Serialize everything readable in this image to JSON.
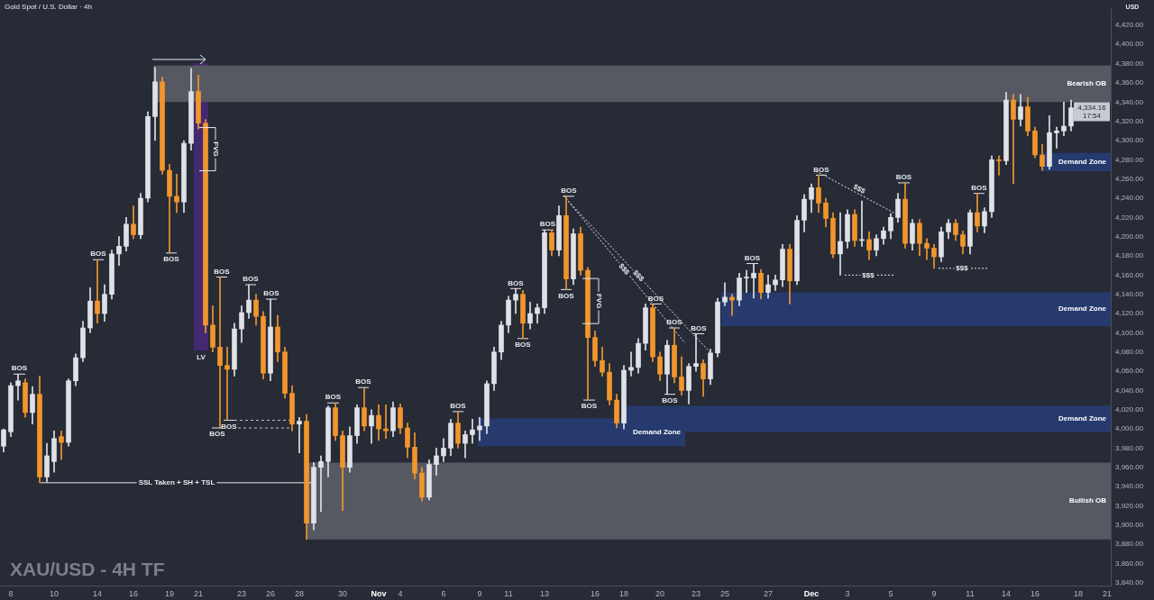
{
  "chart_data": {
    "type": "candlestick",
    "title": "XAU/USD - 4H TF",
    "subtitle": "Gold Spot / U.S. Dollar · 4h",
    "ylabel": "USD",
    "categories": [
      null,
      "8",
      null,
      null,
      null,
      null,
      null,
      "10",
      null,
      null,
      null,
      null,
      null,
      "14",
      null,
      null,
      null,
      null,
      "16",
      null,
      null,
      null,
      null,
      "19",
      null,
      null,
      null,
      "21",
      null,
      null,
      null,
      null,
      null,
      "23",
      null,
      null,
      null,
      "26",
      null,
      null,
      null,
      "28",
      null,
      null,
      null,
      null,
      null,
      "30",
      null,
      null,
      null,
      null,
      "Nov",
      null,
      null,
      "4",
      null,
      null,
      null,
      null,
      null,
      "6",
      null,
      null,
      null,
      null,
      "9",
      null,
      null,
      null,
      "11",
      null,
      null,
      null,
      null,
      "13",
      null,
      null,
      null,
      null,
      null,
      null,
      "16",
      null,
      null,
      null,
      "18",
      null,
      null,
      null,
      null,
      "20",
      null,
      null,
      null,
      null,
      "23",
      null,
      null,
      null,
      "25",
      null,
      null,
      null,
      null,
      null,
      "27",
      null,
      null,
      null,
      null,
      null,
      "Dec",
      null,
      null,
      null,
      null,
      "3",
      null,
      null,
      null,
      null,
      null,
      "5",
      null,
      null,
      null,
      null,
      null,
      "9",
      null,
      null,
      null,
      null,
      "11",
      null,
      null,
      null,
      null,
      "14",
      null,
      null,
      null,
      "16",
      null,
      null,
      null,
      null,
      null,
      "18",
      null,
      null,
      null,
      "21"
    ],
    "ohlc": [
      [
        3982,
        4000,
        3976,
        3999
      ],
      [
        3997,
        4048,
        3992,
        4045
      ],
      [
        4045,
        4057,
        4030,
        4050
      ],
      [
        4048,
        4052,
        4012,
        4017
      ],
      [
        4017,
        4044,
        4005,
        4036
      ],
      [
        4036,
        4055,
        3944,
        3950
      ],
      [
        3950,
        3985,
        3945,
        3972
      ],
      [
        3966,
        3998,
        3955,
        3990
      ],
      [
        3992,
        3998,
        3968,
        3986
      ],
      [
        3986,
        4052,
        3982,
        4050
      ],
      [
        4050,
        4078,
        4045,
        4074
      ],
      [
        4074,
        4112,
        4070,
        4105
      ],
      [
        4105,
        4147,
        4100,
        4133
      ],
      [
        4133,
        4176,
        4110,
        4120
      ],
      [
        4120,
        4150,
        4112,
        4140
      ],
      [
        4140,
        4186,
        4135,
        4182
      ],
      [
        4182,
        4200,
        4170,
        4190
      ],
      [
        4190,
        4220,
        4185,
        4213
      ],
      [
        4213,
        4232,
        4198,
        4202
      ],
      [
        4202,
        4245,
        4198,
        4240
      ],
      [
        4240,
        4330,
        4236,
        4325
      ],
      [
        4325,
        4376,
        4300,
        4361
      ],
      [
        4361,
        4366,
        4265,
        4269
      ],
      [
        4269,
        4275,
        4183,
        4242
      ],
      [
        4242,
        4265,
        4225,
        4236
      ],
      [
        4236,
        4300,
        4225,
        4297
      ],
      [
        4297,
        4375,
        4290,
        4351
      ],
      [
        4351,
        4368,
        4312,
        4318
      ],
      [
        4318,
        4322,
        4100,
        4108
      ],
      [
        4108,
        4128,
        4080,
        4085
      ],
      [
        4085,
        4158,
        4001,
        4066
      ],
      [
        4066,
        4085,
        4009,
        4062
      ],
      [
        4062,
        4110,
        4055,
        4104
      ],
      [
        4104,
        4128,
        4090,
        4121
      ],
      [
        4121,
        4150,
        4115,
        4134
      ],
      [
        4134,
        4140,
        4108,
        4117
      ],
      [
        4117,
        4122,
        4052,
        4058
      ],
      [
        4058,
        4135,
        4050,
        4106
      ],
      [
        4106,
        4118,
        4070,
        4080
      ],
      [
        4080,
        4085,
        4032,
        4037
      ],
      [
        4037,
        4045,
        3998,
        4005
      ],
      [
        4005,
        4012,
        3975,
        4008
      ],
      [
        4008,
        4015,
        3885,
        3902
      ],
      [
        3902,
        3965,
        3895,
        3960
      ],
      [
        3960,
        3972,
        3914,
        3966
      ],
      [
        3966,
        4024,
        3950,
        4022
      ],
      [
        4022,
        4027,
        3988,
        3993
      ],
      [
        3993,
        3998,
        3915,
        3960
      ],
      [
        3960,
        4002,
        3955,
        3993
      ],
      [
        3993,
        4025,
        3985,
        4022
      ],
      [
        4022,
        4043,
        3998,
        4003
      ],
      [
        4003,
        4020,
        3985,
        4014
      ],
      [
        4014,
        4025,
        3988,
        4000
      ],
      [
        4000,
        4025,
        3990,
        3998
      ],
      [
        3998,
        4028,
        3992,
        4022
      ],
      [
        4022,
        4026,
        3995,
        4001
      ],
      [
        4001,
        4006,
        3970,
        3981
      ],
      [
        3981,
        3996,
        3948,
        3954
      ],
      [
        3954,
        3960,
        3925,
        3929
      ],
      [
        3929,
        3968,
        3926,
        3963
      ],
      [
        3963,
        3980,
        3952,
        3972
      ],
      [
        3972,
        3990,
        3966,
        3980
      ],
      [
        3980,
        4010,
        3972,
        4006
      ],
      [
        4006,
        4018,
        3980,
        3985
      ],
      [
        3985,
        3998,
        3970,
        3994
      ],
      [
        3994,
        4010,
        3985,
        3999
      ],
      [
        3999,
        4012,
        3988,
        4003
      ],
      [
        4003,
        4050,
        3995,
        4047
      ],
      [
        4047,
        4085,
        4040,
        4080
      ],
      [
        4080,
        4112,
        4072,
        4108
      ],
      [
        4108,
        4138,
        4100,
        4134
      ],
      [
        4134,
        4146,
        4120,
        4140
      ],
      [
        4140,
        4144,
        4094,
        4110
      ],
      [
        4110,
        4132,
        4104,
        4120
      ],
      [
        4120,
        4130,
        4110,
        4126
      ],
      [
        4126,
        4207,
        4120,
        4204
      ],
      [
        4204,
        4207,
        4180,
        4186
      ],
      [
        4186,
        4232,
        4180,
        4222
      ],
      [
        4222,
        4242,
        4145,
        4156
      ],
      [
        4156,
        4208,
        4150,
        4203
      ],
      [
        4203,
        4210,
        4160,
        4165
      ],
      [
        4165,
        4168,
        4030,
        4095
      ],
      [
        4095,
        4102,
        4065,
        4071
      ],
      [
        4071,
        4085,
        4055,
        4059
      ],
      [
        4059,
        4068,
        4025,
        4030
      ],
      [
        4030,
        4036,
        4001,
        4006
      ],
      [
        4006,
        4066,
        4000,
        4061
      ],
      [
        4061,
        4080,
        4055,
        4064
      ],
      [
        4064,
        4094,
        4058,
        4089
      ],
      [
        4089,
        4130,
        4082,
        4126
      ],
      [
        4126,
        4130,
        4070,
        4075
      ],
      [
        4075,
        4080,
        4050,
        4057
      ],
      [
        4057,
        4092,
        4036,
        4087
      ],
      [
        4087,
        4105,
        4048,
        4054
      ],
      [
        4054,
        4075,
        4035,
        4040
      ],
      [
        4040,
        4068,
        4026,
        4065
      ],
      [
        4065,
        4099,
        4060,
        4068
      ],
      [
        4068,
        4072,
        4034,
        4052
      ],
      [
        4052,
        4083,
        4046,
        4079
      ],
      [
        4079,
        4136,
        4075,
        4132
      ],
      [
        4132,
        4152,
        4128,
        4137
      ],
      [
        4137,
        4140,
        4118,
        4134
      ],
      [
        4134,
        4162,
        4128,
        4157
      ],
      [
        4157,
        4165,
        4142,
        4157
      ],
      [
        4157,
        4172,
        4136,
        4162
      ],
      [
        4162,
        4166,
        4135,
        4142
      ],
      [
        4142,
        4160,
        4136,
        4150
      ],
      [
        4150,
        4160,
        4144,
        4155
      ],
      [
        4155,
        4192,
        4148,
        4187
      ],
      [
        4187,
        4192,
        4130,
        4154
      ],
      [
        4154,
        4222,
        4150,
        4217
      ],
      [
        4217,
        4244,
        4205,
        4239
      ],
      [
        4239,
        4255,
        4225,
        4251
      ],
      [
        4251,
        4264,
        4225,
        4235
      ],
      [
        4235,
        4240,
        4210,
        4219
      ],
      [
        4219,
        4225,
        4178,
        4182
      ],
      [
        4182,
        4225,
        4160,
        4195
      ],
      [
        4195,
        4228,
        4188,
        4223
      ],
      [
        4223,
        4228,
        4190,
        4196
      ],
      [
        4196,
        4237,
        4190,
        4197
      ],
      [
        4197,
        4205,
        4176,
        4186
      ],
      [
        4186,
        4202,
        4180,
        4198
      ],
      [
        4198,
        4210,
        4192,
        4206
      ],
      [
        4206,
        4224,
        4198,
        4220
      ],
      [
        4220,
        4245,
        4215,
        4239
      ],
      [
        4239,
        4256,
        4188,
        4193
      ],
      [
        4193,
        4218,
        4186,
        4214
      ],
      [
        4214,
        4218,
        4180,
        4193
      ],
      [
        4193,
        4198,
        4176,
        4188
      ],
      [
        4188,
        4192,
        4167,
        4179
      ],
      [
        4179,
        4210,
        4174,
        4205
      ],
      [
        4205,
        4218,
        4198,
        4214
      ],
      [
        4214,
        4218,
        4196,
        4202
      ],
      [
        4202,
        4206,
        4182,
        4190
      ],
      [
        4190,
        4228,
        4182,
        4225
      ],
      [
        4225,
        4245,
        4205,
        4211
      ],
      [
        4211,
        4230,
        4204,
        4226
      ],
      [
        4226,
        4284,
        4220,
        4280
      ],
      [
        4280,
        4284,
        4264,
        4279
      ],
      [
        4279,
        4350,
        4275,
        4342
      ],
      [
        4342,
        4348,
        4255,
        4322
      ],
      [
        4322,
        4348,
        4315,
        4335
      ],
      [
        4335,
        4345,
        4305,
        4310
      ],
      [
        4310,
        4314,
        4282,
        4285
      ],
      [
        4285,
        4296,
        4269,
        4273
      ],
      [
        4273,
        4326,
        4270,
        4308
      ],
      [
        4308,
        4314,
        4292,
        4310
      ],
      [
        4310,
        4340,
        4305,
        4315
      ],
      [
        4315,
        4342,
        4310,
        4334.16
      ],
      null,
      null,
      null,
      null,
      null
    ],
    "colors": [
      "#dfe1e6",
      "#dfe1e6",
      "#dfe1e6",
      "#f2962c",
      "#dfe1e6",
      "#f2962c",
      "#dfe1e6",
      "#dfe1e6",
      "#f2962c",
      "#dfe1e6",
      "#dfe1e6",
      "#dfe1e6",
      "#dfe1e6",
      "#f2962c",
      "#dfe1e6",
      "#dfe1e6",
      "#dfe1e6",
      "#dfe1e6",
      "#f2962c",
      "#dfe1e6",
      "#dfe1e6",
      "#dfe1e6",
      "#f2962c",
      "#f2962c",
      "#f2962c",
      "#dfe1e6",
      "#dfe1e6",
      "#f2962c",
      "#f2962c",
      "#f2962c",
      "#f2962c",
      "#f2962c",
      "#dfe1e6",
      "#dfe1e6",
      "#dfe1e6",
      "#f2962c",
      "#f2962c",
      "#dfe1e6",
      "#f2962c",
      "#f2962c",
      "#f2962c",
      "#dfe1e6",
      "#f2962c",
      "#dfe1e6",
      "#dfe1e6",
      "#dfe1e6",
      "#f2962c",
      "#f2962c",
      "#dfe1e6",
      "#dfe1e6",
      "#f2962c",
      "#dfe1e6",
      "#f2962c",
      "#f2962c",
      "#dfe1e6",
      "#f2962c",
      "#f2962c",
      "#f2962c",
      "#f2962c",
      "#dfe1e6",
      "#dfe1e6",
      "#dfe1e6",
      "#dfe1e6",
      "#f2962c",
      "#dfe1e6",
      "#dfe1e6",
      "#dfe1e6",
      "#dfe1e6",
      "#dfe1e6",
      "#dfe1e6",
      "#dfe1e6",
      "#dfe1e6",
      "#f2962c",
      "#dfe1e6",
      "#dfe1e6",
      "#dfe1e6",
      "#f2962c",
      "#dfe1e6",
      "#f2962c",
      "#dfe1e6",
      "#f2962c",
      "#f2962c",
      "#f2962c",
      "#f2962c",
      "#f2962c",
      "#f2962c",
      "#dfe1e6",
      "#dfe1e6",
      "#dfe1e6",
      "#dfe1e6",
      "#f2962c",
      "#f2962c",
      "#dfe1e6",
      "#f2962c",
      "#f2962c",
      "#dfe1e6",
      "#dfe1e6",
      "#f2962c",
      "#dfe1e6",
      "#dfe1e6",
      "#dfe1e6",
      "#f2962c",
      "#dfe1e6",
      "#dfe1e6",
      "#dfe1e6",
      "#f2962c",
      "#dfe1e6",
      "#dfe1e6",
      "#dfe1e6",
      "#f2962c",
      "#dfe1e6",
      "#dfe1e6",
      "#dfe1e6",
      "#f2962c",
      "#f2962c",
      "#f2962c",
      "#dfe1e6",
      "#dfe1e6",
      "#f2962c",
      "#dfe1e6",
      "#f2962c",
      "#dfe1e6",
      "#dfe1e6",
      "#dfe1e6",
      "#dfe1e6",
      "#f2962c",
      "#dfe1e6",
      "#f2962c",
      "#f2962c",
      "#f2962c",
      "#dfe1e6",
      "#dfe1e6",
      "#f2962c",
      "#f2962c",
      "#dfe1e6",
      "#f2962c",
      "#dfe1e6",
      "#dfe1e6",
      "#f2962c",
      "#dfe1e6",
      "#f2962c",
      "#dfe1e6",
      "#f2962c",
      "#f2962c",
      "#f2962c",
      "#dfe1e6",
      "#dfe1e6",
      "#dfe1e6",
      "#dfe1e6",
      null,
      null,
      null,
      null,
      null
    ],
    "ylim": [
      3837,
      4437
    ],
    "yticks": [
      {
        "value": 3840,
        "label": "3,840.00"
      },
      {
        "value": 3860,
        "label": "3,860.00"
      },
      {
        "value": 3880,
        "label": "3,880.00"
      },
      {
        "value": 3900,
        "label": "3,900.00"
      },
      {
        "value": 3920,
        "label": "3,920.00"
      },
      {
        "value": 3940,
        "label": "3,940.00"
      },
      {
        "value": 3960,
        "label": "3,960.00"
      },
      {
        "value": 3980,
        "label": "3,980.00"
      },
      {
        "value": 4000,
        "label": "4,000.00"
      },
      {
        "value": 4020,
        "label": "4,020.00"
      },
      {
        "value": 4040,
        "label": "4,040.00"
      },
      {
        "value": 4060,
        "label": "4,060.00"
      },
      {
        "value": 4080,
        "label": "4,080.00"
      },
      {
        "value": 4100,
        "label": "4,100.00"
      },
      {
        "value": 4120,
        "label": "4,120.00"
      },
      {
        "value": 4140,
        "label": "4,140.00"
      },
      {
        "value": 4160,
        "label": "4,160.00"
      },
      {
        "value": 4180,
        "label": "4,180.00"
      },
      {
        "value": 4200,
        "label": "4,200.00"
      },
      {
        "value": 4220,
        "label": "4,220.00"
      },
      {
        "value": 4240,
        "label": "4,240.00"
      },
      {
        "value": 4260,
        "label": "4,260.00"
      },
      {
        "value": 4280,
        "label": "4,280.00"
      },
      {
        "value": 4300,
        "label": "4,300.00"
      },
      {
        "value": 4320,
        "label": "4,320.00"
      },
      {
        "value": 4340,
        "label": "4,340.00"
      },
      {
        "value": 4360,
        "label": "4,360.00"
      },
      {
        "value": 4380,
        "label": "4,380.00"
      },
      {
        "value": 4400,
        "label": "4,400.00"
      },
      {
        "value": 4420,
        "label": "4,420.00"
      }
    ],
    "bands": [
      {
        "axis": "y",
        "from": 4340,
        "to": 4378,
        "label": "Bearish OB",
        "color": "#565962"
      },
      {
        "axis": "y",
        "from": 4268,
        "to": 4287,
        "label": "Demand Zone",
        "color": "#273a6e"
      },
      {
        "axis": "y",
        "from": 4107,
        "to": 4142,
        "label": "Demand Zone",
        "color": "#273a6e"
      },
      {
        "axis": "y",
        "from": 3997,
        "to": 4024,
        "label": "Demand Zone",
        "color": "#273a6e"
      },
      {
        "axis": "y",
        "from": 3982,
        "to": 4011,
        "label": "Demand Zone",
        "color": "#273a6e"
      },
      {
        "axis": "y",
        "from": 3885,
        "to": 3965,
        "label": "Bullish OB",
        "color": "#565962"
      }
    ],
    "ref_lines": [
      {
        "axis": "y",
        "value": 3944,
        "label": "SSL Taken + SH + TSL",
        "color": "#e6e8ee"
      },
      {
        "axis": "y",
        "value": 4160,
        "label": "$$$",
        "color": "#e6e8ee",
        "line_style": "dotted"
      },
      {
        "axis": "y",
        "value": 4167,
        "label": "$$$",
        "color": "#e6e8ee",
        "line_style": "dotted"
      }
    ],
    "annotations": [
      {
        "text": "BOS",
        "y": 4057
      },
      {
        "text": "BOS",
        "y": 4176
      },
      {
        "text": "BOS",
        "y": 4183
      },
      {
        "text": "BOS",
        "y": 4158
      },
      {
        "text": "BOS",
        "y": 4150
      },
      {
        "text": "BOS",
        "y": 4135
      },
      {
        "text": "BOS",
        "y": 4001
      },
      {
        "text": "BOS",
        "y": 4009
      },
      {
        "text": "BOS",
        "y": 4027
      },
      {
        "text": "BOS",
        "y": 4043
      },
      {
        "text": "BOS",
        "y": 4018
      },
      {
        "text": "BOS",
        "y": 4146
      },
      {
        "text": "BOS",
        "y": 4094
      },
      {
        "text": "BOS",
        "y": 4207
      },
      {
        "text": "BOS",
        "y": 4242
      },
      {
        "text": "BOS",
        "y": 4145
      },
      {
        "text": "BOS",
        "y": 4030
      },
      {
        "text": "BOS",
        "y": 4130
      },
      {
        "text": "BOS",
        "y": 4105
      },
      {
        "text": "BOS",
        "y": 4036
      },
      {
        "text": "BOS",
        "y": 4099
      },
      {
        "text": "BOS",
        "y": 4172
      },
      {
        "text": "BOS",
        "y": 4264
      },
      {
        "text": "BOS",
        "y": 4256
      },
      {
        "text": "BOS",
        "y": 4245
      },
      {
        "text": "FVG",
        "y": 4291
      },
      {
        "text": "FVG",
        "y": 4133
      },
      {
        "text": "$$$",
        "y": 4166
      },
      {
        "text": "$$$",
        "y": 4159
      },
      "$$$",
      "4,334.16",
      "17:54",
      "LV"
    ]
  }
}
